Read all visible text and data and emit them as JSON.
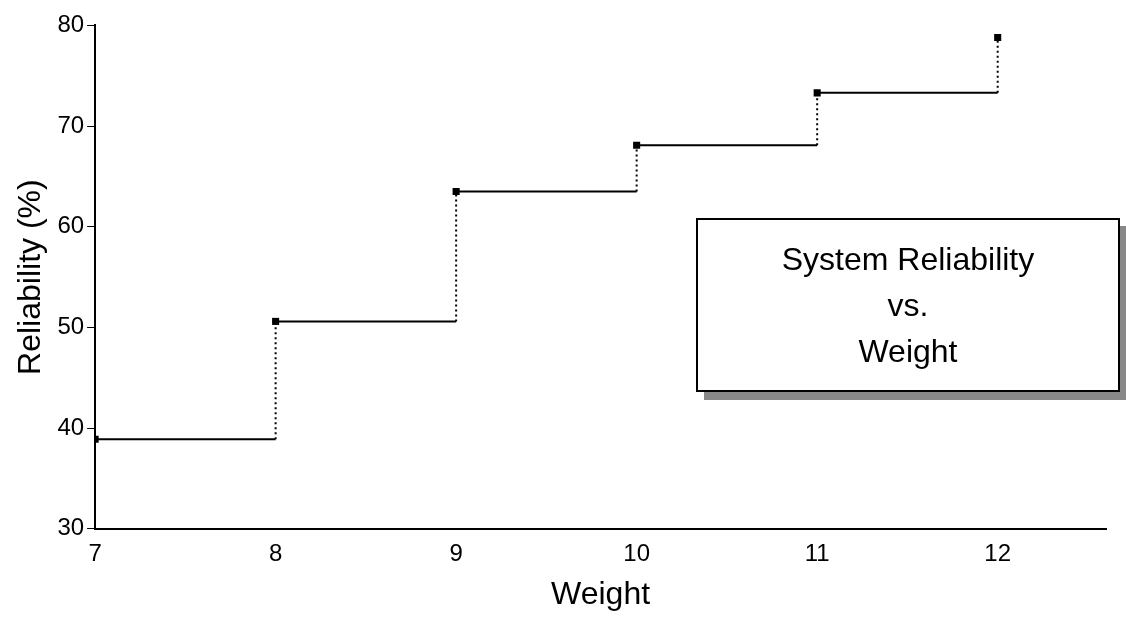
{
  "chart_data": {
    "type": "step",
    "title": "System Reliability\nvs.\nWeight",
    "xlabel": "Weight",
    "ylabel": "Reliability (%)",
    "x": [
      7,
      8,
      9,
      10,
      11,
      12
    ],
    "values": [
      38.9,
      50.6,
      63.5,
      68.1,
      73.3,
      78.8
    ],
    "color": "#000000",
    "marker": "square",
    "xlim": [
      7,
      12.6
    ],
    "xticks": [
      7,
      8,
      9,
      10,
      11,
      12
    ],
    "ylim": [
      30,
      80
    ],
    "yticks": [
      30,
      40,
      50,
      60,
      70,
      80
    ],
    "grid": false,
    "legend": false
  }
}
